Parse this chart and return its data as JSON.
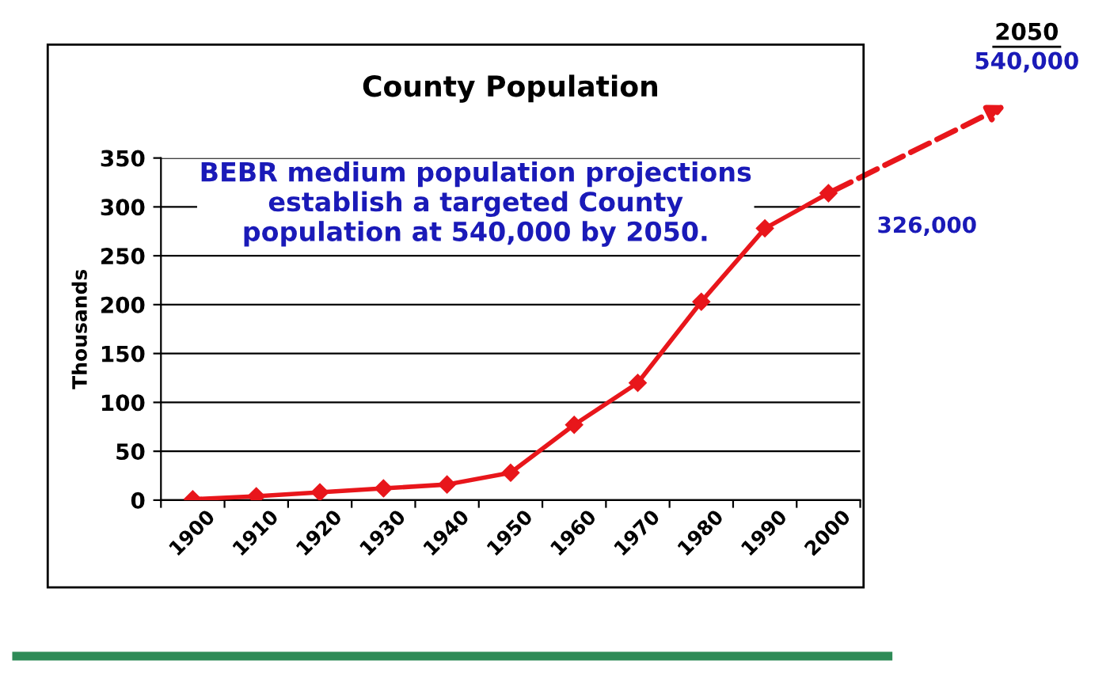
{
  "chart_data": {
    "type": "line",
    "title": "County Population",
    "ylabel": "Thousands",
    "categories": [
      "1900",
      "1910",
      "1920",
      "1930",
      "1940",
      "1950",
      "1960",
      "1970",
      "1980",
      "1990",
      "2000"
    ],
    "series": [
      {
        "color": "#e8161b",
        "values": [
          1,
          4,
          8,
          12,
          16,
          28,
          77,
          120,
          203,
          278,
          314
        ]
      }
    ],
    "ylim": [
      0,
      350
    ],
    "yticks": [
      0,
      50,
      100,
      150,
      200,
      250,
      300,
      350
    ],
    "grid": "y",
    "marker": "diamond",
    "line_style": "solid",
    "annotations": [
      "BEBR medium population projections\nestablish a targeted County\npopulation at 540,000 by 2050.",
      "326,000",
      "2050",
      "540,000"
    ]
  }
}
